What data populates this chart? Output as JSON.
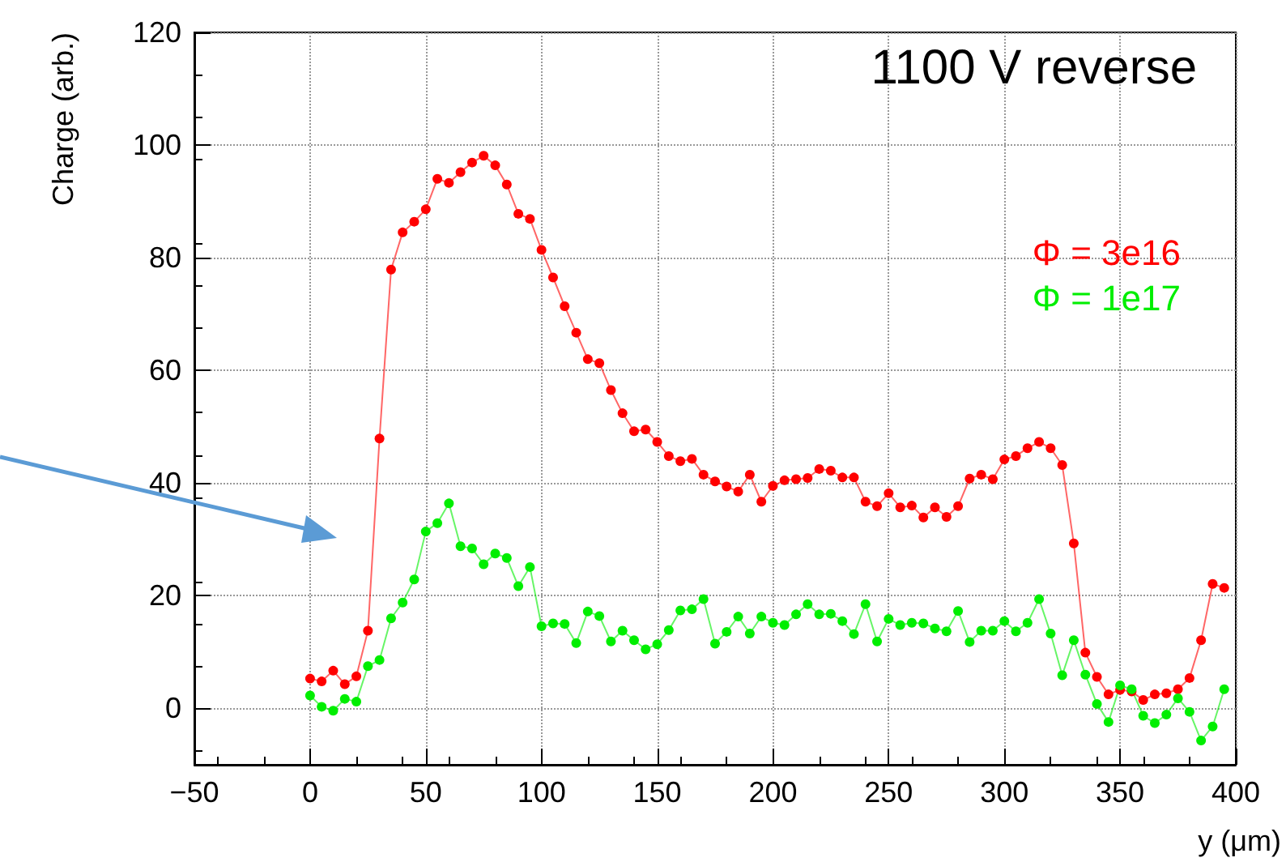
{
  "chart_data": {
    "type": "line",
    "title": "1100 V reverse",
    "xlabel": "y (μm)",
    "ylabel": "Charge (arb.)",
    "x": [
      0,
      5,
      10,
      15,
      20,
      25,
      30,
      35,
      40,
      45,
      50,
      55,
      60,
      65,
      70,
      75,
      80,
      85,
      90,
      95,
      100,
      105,
      110,
      115,
      120,
      125,
      130,
      135,
      140,
      145,
      150,
      155,
      160,
      165,
      170,
      175,
      180,
      185,
      190,
      195,
      200,
      205,
      210,
      215,
      220,
      225,
      230,
      235,
      240,
      245,
      250,
      255,
      260,
      265,
      270,
      275,
      280,
      285,
      290,
      295,
      300,
      305,
      310,
      315,
      320,
      325,
      330,
      335,
      340,
      345,
      350,
      355,
      360,
      365,
      370,
      375,
      380,
      385,
      390,
      395
    ],
    "series": [
      {
        "name": "Φ = 3e16",
        "color": "#ff0000",
        "values": [
          5.3,
          4.8,
          6.7,
          4.3,
          5.7,
          13.8,
          47.9,
          77.9,
          84.5,
          86.4,
          88.6,
          94.0,
          93.3,
          95.2,
          96.9,
          98.1,
          96.4,
          93.0,
          87.8,
          86.9,
          81.4,
          76.5,
          71.4,
          66.7,
          62.0,
          61.3,
          56.5,
          52.4,
          49.2,
          49.5,
          47.3,
          44.8,
          43.9,
          44.3,
          41.5,
          40.3,
          39.4,
          38.5,
          41.5,
          36.7,
          39.5,
          40.5,
          40.7,
          40.9,
          42.5,
          42.2,
          41.0,
          41.0,
          36.7,
          35.9,
          38.2,
          35.7,
          36.0,
          33.9,
          35.7,
          34.0,
          35.9,
          40.8,
          41.5,
          40.7,
          44.2,
          44.8,
          46.2,
          47.3,
          46.2,
          43.2,
          29.3,
          9.9,
          5.6,
          2.5,
          3.3,
          3.0,
          1.5,
          2.5,
          2.7,
          3.4,
          5.4,
          12.1,
          22.1,
          21.4
        ]
      },
      {
        "name": "Φ = 1e17",
        "color": "#00ee00",
        "values": [
          2.3,
          0.3,
          -0.4,
          1.7,
          1.2,
          7.5,
          8.6,
          16.0,
          18.8,
          22.9,
          31.4,
          32.9,
          36.4,
          28.8,
          28.4,
          25.6,
          27.5,
          26.7,
          21.7,
          25.1,
          14.6,
          15.1,
          15.0,
          11.6,
          17.2,
          16.4,
          11.9,
          13.8,
          12.1,
          10.5,
          11.4,
          13.9,
          17.4,
          17.6,
          19.4,
          11.5,
          13.6,
          16.3,
          13.3,
          16.3,
          15.2,
          14.8,
          16.7,
          18.5,
          16.7,
          16.8,
          15.5,
          13.2,
          18.5,
          11.9,
          15.9,
          14.8,
          15.2,
          15.1,
          14.2,
          13.7,
          17.3,
          11.8,
          13.8,
          13.8,
          15.5,
          13.7,
          15.2,
          19.4,
          13.3,
          5.9,
          12.1,
          6.0,
          0.8,
          -2.4,
          4.1,
          3.4,
          -1.3,
          -2.6,
          -1.1,
          1.8,
          -0.6,
          -5.7,
          -3.2,
          3.4
        ]
      }
    ],
    "xlim": [
      -50,
      400
    ],
    "xticks": [
      -50,
      0,
      50,
      100,
      150,
      200,
      250,
      300,
      350,
      400
    ],
    "ylim": [
      -10,
      120
    ],
    "yticks": [
      0,
      20,
      40,
      60,
      80,
      100,
      120
    ],
    "grid": true,
    "legend": "right",
    "marker": "circle",
    "line_style": "solid"
  }
}
